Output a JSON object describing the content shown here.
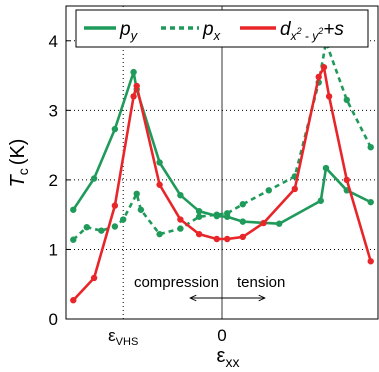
{
  "chart_data": {
    "type": "line",
    "xlabel": "ε",
    "xlabel_sub": "xx",
    "ylabel": "T",
    "ylabel_sub": "c",
    "ylabel_unit": "(K)",
    "ylim": [
      0,
      4.5
    ],
    "xlim": [
      -1.5,
      1.5
    ],
    "yticks": [
      0,
      1,
      2,
      3,
      4
    ],
    "xticks": [
      {
        "value": -0.95,
        "label": "ε",
        "sub": "VHS"
      },
      {
        "value": 0,
        "label": "0",
        "sub": ""
      }
    ],
    "grid": "dotted",
    "legend_position": "top",
    "annotations": {
      "compression": "compression",
      "tension": "tension"
    },
    "series": [
      {
        "name": "p_y",
        "color": "#1f9a5a",
        "dash": "solid",
        "x": [
          -1.43,
          -1.23,
          -1.03,
          -0.85,
          -0.82,
          -0.6,
          -0.4,
          -0.22,
          -0.05,
          0.05,
          0.2,
          0.55,
          0.95,
          1.0,
          1.2,
          1.43
        ],
        "y": [
          1.57,
          2.02,
          2.73,
          3.55,
          3.3,
          2.25,
          1.78,
          1.55,
          1.48,
          1.47,
          1.4,
          1.37,
          1.7,
          2.17,
          1.85,
          1.68
        ]
      },
      {
        "name": "p_x",
        "color": "#1f9a5a",
        "dash": "dashed",
        "x": [
          -1.43,
          -1.3,
          -1.16,
          -1.03,
          -0.95,
          -0.82,
          -0.78,
          -0.6,
          -0.4,
          -0.22,
          -0.05,
          0.05,
          0.2,
          0.45,
          0.7,
          0.93,
          1.0,
          1.2,
          1.43
        ],
        "y": [
          1.14,
          1.32,
          1.27,
          1.33,
          1.43,
          1.8,
          1.57,
          1.22,
          1.3,
          1.47,
          1.5,
          1.52,
          1.65,
          1.85,
          2.05,
          3.4,
          3.98,
          3.15,
          2.47
        ]
      },
      {
        "name": "d_{x^2-y^2}+s",
        "color": "#e8262a",
        "dash": "solid",
        "x": [
          -1.43,
          -1.23,
          -1.03,
          -0.85,
          -0.82,
          -0.6,
          -0.4,
          -0.22,
          -0.05,
          0.05,
          0.2,
          0.4,
          0.7,
          0.93,
          0.98,
          1.03,
          1.2,
          1.43
        ],
        "y": [
          0.27,
          0.59,
          1.63,
          3.2,
          3.35,
          1.93,
          1.43,
          1.22,
          1.15,
          1.15,
          1.18,
          1.38,
          1.87,
          3.48,
          3.62,
          3.2,
          2.0,
          0.83
        ]
      }
    ]
  }
}
